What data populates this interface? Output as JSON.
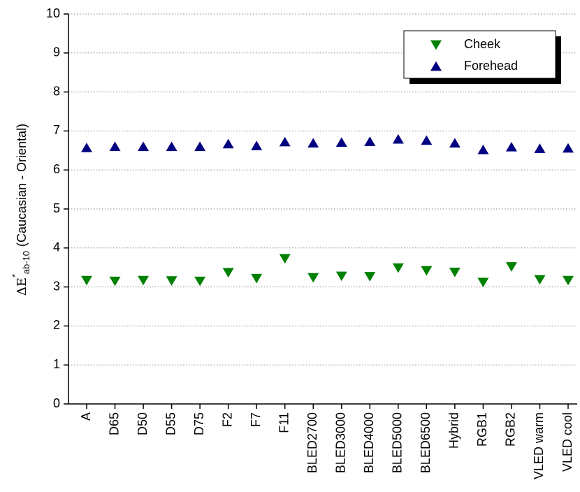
{
  "chart_data": {
    "type": "scatter",
    "ylabel": {
      "symbol": "ΔE",
      "superscript": "*",
      "subscript": "ab-10",
      "text": "(Caucasian - Oriental)"
    },
    "categories": [
      "A",
      "D65",
      "D50",
      "D55",
      "D75",
      "F2",
      "F7",
      "F11",
      "BLED2700",
      "BLED3000",
      "BLED4000",
      "BLED5000",
      "BLED6500",
      "Hybrid",
      "RGB1",
      "RGB2",
      "VLED warm",
      "VLED cool"
    ],
    "series": [
      {
        "name": "Cheek",
        "color": "#008000",
        "marker": "triangle-down",
        "values": [
          3.17,
          3.15,
          3.17,
          3.16,
          3.15,
          3.37,
          3.22,
          3.73,
          3.24,
          3.28,
          3.27,
          3.49,
          3.42,
          3.38,
          3.12,
          3.52,
          3.19,
          3.17
        ]
      },
      {
        "name": "Forehead",
        "color": "#000080",
        "marker": "triangle-up",
        "values": [
          6.57,
          6.6,
          6.6,
          6.6,
          6.6,
          6.67,
          6.62,
          6.72,
          6.69,
          6.71,
          6.73,
          6.79,
          6.76,
          6.69,
          6.52,
          6.59,
          6.55,
          6.56
        ]
      }
    ],
    "ylim": [
      0,
      10
    ],
    "yticks": [
      0,
      1,
      2,
      3,
      4,
      5,
      6,
      7,
      8,
      9,
      10
    ],
    "grid": true,
    "legend": "upper-right"
  }
}
